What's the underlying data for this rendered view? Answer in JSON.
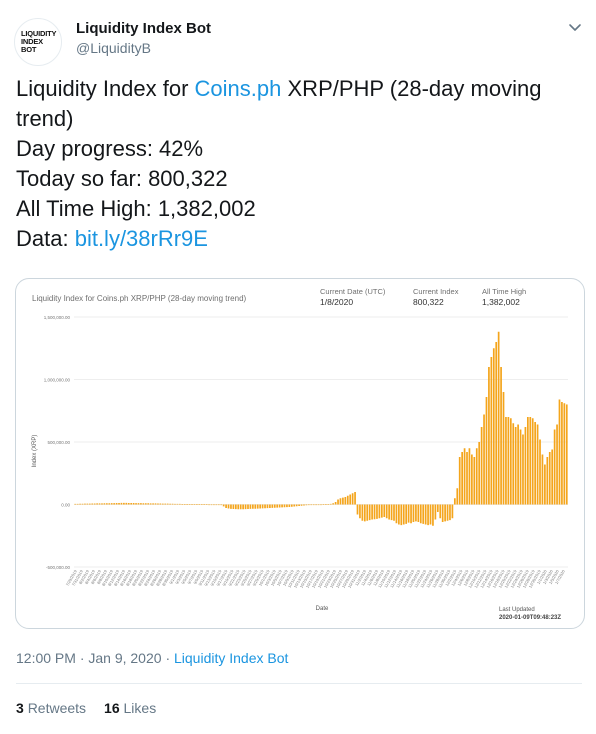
{
  "account": {
    "avatar_lines": [
      "LIQUIDITY",
      "INDEX",
      "BOT"
    ],
    "name": "Liquidity Index Bot",
    "handle": "@LiquidityB",
    "menu_icon": "chevron-down-icon"
  },
  "tweet": {
    "line1_prefix": "Liquidity Index for ",
    "line1_link": "Coins.ph",
    "line1_suffix": " XRP/PHP (28-day moving",
    "line2": "trend)",
    "line3": "Day progress: 42%",
    "line4": "Today so far: 800,322",
    "line5": "All Time High: 1,382,002",
    "line6_prefix": "Data: ",
    "line6_link": "bit.ly/38rRr9E"
  },
  "card": {
    "title": "Liquidity Index for Coins.ph XRP/PHP (28-day moving trend)",
    "kpis": [
      {
        "label": "Current Date (UTC)",
        "value": "1/8/2020"
      },
      {
        "label": "Current Index",
        "value": "800,322"
      },
      {
        "label": "All Time High",
        "value": "1,382,002"
      }
    ],
    "last_updated_label": "Last Updated",
    "last_updated_value": "2020-01-09T09:48:23Z"
  },
  "chart_data": {
    "type": "bar",
    "ylabel": "Index (XRP)",
    "xlabel": "Date",
    "ylim": [
      -300000,
      1500000
    ],
    "yticks": [
      -500000,
      0,
      500000,
      1000000,
      1500000
    ],
    "ytick_labels": [
      "-500,000.00",
      "0.00",
      "500,000.00",
      "1,000,000.00",
      "1,500,000.00"
    ],
    "grid": true,
    "bar_color": "#f4a51c",
    "x_tick_labels": [
      "7/29/2019",
      "7/31/2019",
      "8/2/2019",
      "8/4/2019",
      "8/6/2019",
      "8/8/2019",
      "8/10/2019",
      "8/12/2019",
      "8/14/2019",
      "8/16/2019",
      "8/18/2019",
      "8/20/2019",
      "8/22/2019",
      "8/24/2019",
      "8/26/2019",
      "8/28/2019",
      "8/30/2019",
      "9/1/2019",
      "9/3/2019",
      "9/5/2019",
      "9/7/2019",
      "9/9/2019",
      "9/11/2019",
      "9/13/2019",
      "9/15/2019",
      "9/17/2019",
      "9/19/2019",
      "9/21/2019",
      "9/23/2019",
      "9/25/2019",
      "9/27/2019",
      "9/29/2019",
      "10/1/2019",
      "10/3/2019",
      "10/5/2019",
      "10/7/2019",
      "10/9/2019",
      "10/11/2019",
      "10/13/2019",
      "10/15/2019",
      "10/17/2019",
      "10/19/2019",
      "10/21/2019",
      "10/23/2019",
      "10/25/2019",
      "10/27/2019",
      "10/29/2019",
      "10/31/2019",
      "11/2/2019",
      "11/4/2019",
      "11/6/2019",
      "11/8/2019",
      "11/10/2019",
      "11/12/2019",
      "11/14/2019",
      "11/16/2019",
      "11/18/2019",
      "11/20/2019",
      "11/22/2019",
      "11/24/2019",
      "11/26/2019",
      "11/28/2019",
      "11/30/2019",
      "12/2/2019",
      "12/4/2019",
      "12/6/2019",
      "12/8/2019",
      "12/10/2019",
      "12/12/2019",
      "12/14/2019",
      "12/16/2019",
      "12/18/2019",
      "12/20/2019",
      "12/22/2019",
      "12/24/2019",
      "12/26/2019",
      "12/28/2019",
      "12/30/2019",
      "1/1/2020",
      "1/3/2020",
      "1/5/2020",
      "1/7/2020"
    ],
    "values": [
      5000,
      5000,
      6000,
      6000,
      7000,
      7000,
      7000,
      8000,
      8000,
      9000,
      9000,
      9000,
      10000,
      10000,
      10000,
      11000,
      11000,
      12000,
      12000,
      13000,
      13000,
      13000,
      12000,
      12000,
      12000,
      11000,
      11000,
      11000,
      10000,
      10000,
      10000,
      9000,
      9000,
      9000,
      8000,
      8000,
      7000,
      7000,
      7000,
      6000,
      6000,
      5000,
      5000,
      5000,
      4000,
      4000,
      3000,
      3000,
      3000,
      2000,
      2000,
      2000,
      1000,
      1000,
      1000,
      0,
      0,
      -1000,
      -1000,
      -2000,
      -5000,
      -15000,
      -28000,
      -32000,
      -35000,
      -36000,
      -37000,
      -38000,
      -38000,
      -38000,
      -37000,
      -36000,
      -35000,
      -34000,
      -34000,
      -33000,
      -32000,
      -31000,
      -30000,
      -29000,
      -28000,
      -27000,
      -26000,
      -25000,
      -24000,
      -23000,
      -22000,
      -21000,
      -20000,
      -18000,
      -16000,
      -14000,
      -12000,
      -10000,
      -8000,
      -6000,
      -5000,
      -4000,
      -3000,
      -2000,
      -1000,
      0,
      1000,
      2000,
      3000,
      5000,
      10000,
      20000,
      40000,
      50000,
      55000,
      60000,
      70000,
      80000,
      90000,
      100000,
      -80000,
      -110000,
      -130000,
      -135000,
      -130000,
      -125000,
      -120000,
      -118000,
      -115000,
      -110000,
      -105000,
      -100000,
      -110000,
      -120000,
      -125000,
      -130000,
      -150000,
      -160000,
      -165000,
      -160000,
      -155000,
      -145000,
      -150000,
      -140000,
      -135000,
      -140000,
      -150000,
      -155000,
      -160000,
      -165000,
      -160000,
      -170000,
      -120000,
      -60000,
      -110000,
      -140000,
      -135000,
      -130000,
      -125000,
      -110000,
      50000,
      130000,
      380000,
      420000,
      450000,
      420000,
      450000,
      400000,
      380000,
      450000,
      500000,
      620000,
      720000,
      860000,
      1100000,
      1180000,
      1250000,
      1300000,
      1382002,
      1100000,
      900000,
      700000,
      700000,
      690000,
      650000,
      620000,
      640000,
      600000,
      560000,
      620000,
      700000,
      700000,
      690000,
      660000,
      640000,
      520000,
      400000,
      320000,
      380000,
      420000,
      440000,
      600000,
      640000,
      840000,
      820000,
      810000,
      800322
    ]
  }
}
